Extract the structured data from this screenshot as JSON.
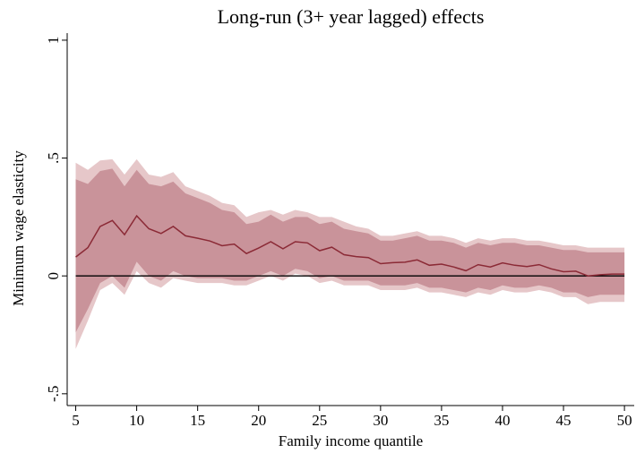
{
  "chart_data": {
    "type": "area",
    "title": "Long-run (3+ year lagged) effects",
    "xlabel": "Family income quantile",
    "ylabel": "Minimum wage elasticity",
    "xlim": [
      4.3,
      50.8
    ],
    "ylim": [
      -0.55,
      1.03
    ],
    "xticks": [
      5,
      10,
      15,
      20,
      25,
      30,
      35,
      40,
      45,
      50
    ],
    "xtick_labels": [
      "5",
      "10",
      "15",
      "20",
      "25",
      "30",
      "35",
      "40",
      "45",
      "50"
    ],
    "yticks": [
      -0.5,
      0,
      0.5,
      1
    ],
    "ytick_labels": [
      "-.5",
      "0",
      ".5",
      "1"
    ],
    "reference_line": 0,
    "grid": false,
    "colors": {
      "estimate": "#8b2a36",
      "ci_inner": "#c9939a",
      "ci_outer": "#e6c7c9",
      "zero_line": "#000000"
    },
    "x": [
      5,
      6,
      7,
      8,
      9,
      10,
      11,
      12,
      13,
      14,
      15,
      16,
      17,
      18,
      19,
      20,
      21,
      22,
      23,
      24,
      25,
      26,
      27,
      28,
      29,
      30,
      31,
      32,
      33,
      34,
      35,
      36,
      37,
      38,
      39,
      40,
      41,
      42,
      43,
      44,
      45,
      46,
      47,
      48,
      49,
      50
    ],
    "series": [
      {
        "role": "estimate",
        "values": [
          0.08,
          0.12,
          0.21,
          0.235,
          0.175,
          0.255,
          0.2,
          0.18,
          0.21,
          0.17,
          0.16,
          0.148,
          0.128,
          0.135,
          0.095,
          0.118,
          0.145,
          0.115,
          0.145,
          0.14,
          0.107,
          0.122,
          0.09,
          0.082,
          0.078,
          0.052,
          0.056,
          0.058,
          0.068,
          0.045,
          0.05,
          0.038,
          0.022,
          0.048,
          0.038,
          0.055,
          0.045,
          0.04,
          0.048,
          0.03,
          0.018,
          0.02,
          0.0,
          0.005,
          0.008,
          0.008
        ]
      },
      {
        "role": "ci_inner",
        "upper": [
          0.41,
          0.39,
          0.445,
          0.455,
          0.38,
          0.45,
          0.39,
          0.38,
          0.4,
          0.35,
          0.33,
          0.31,
          0.28,
          0.27,
          0.22,
          0.23,
          0.26,
          0.23,
          0.25,
          0.25,
          0.22,
          0.23,
          0.2,
          0.19,
          0.18,
          0.15,
          0.15,
          0.16,
          0.17,
          0.15,
          0.15,
          0.14,
          0.12,
          0.14,
          0.13,
          0.14,
          0.14,
          0.13,
          0.13,
          0.12,
          0.11,
          0.11,
          0.1,
          0.1,
          0.1,
          0.1
        ],
        "lower": [
          -0.24,
          -0.14,
          -0.03,
          0.0,
          -0.05,
          0.06,
          0.0,
          -0.02,
          0.02,
          0.0,
          -0.01,
          -0.01,
          -0.01,
          -0.02,
          -0.02,
          0.0,
          0.02,
          0.0,
          0.03,
          0.02,
          -0.01,
          0.0,
          -0.02,
          -0.02,
          -0.02,
          -0.04,
          -0.04,
          -0.04,
          -0.03,
          -0.05,
          -0.05,
          -0.06,
          -0.07,
          -0.05,
          -0.06,
          -0.04,
          -0.05,
          -0.05,
          -0.04,
          -0.05,
          -0.07,
          -0.07,
          -0.09,
          -0.08,
          -0.08,
          -0.08
        ]
      },
      {
        "role": "ci_outer",
        "upper": [
          0.48,
          0.45,
          0.49,
          0.495,
          0.43,
          0.495,
          0.43,
          0.42,
          0.44,
          0.38,
          0.36,
          0.34,
          0.31,
          0.3,
          0.25,
          0.27,
          0.28,
          0.26,
          0.28,
          0.27,
          0.25,
          0.25,
          0.23,
          0.21,
          0.2,
          0.17,
          0.17,
          0.18,
          0.19,
          0.17,
          0.17,
          0.16,
          0.14,
          0.16,
          0.15,
          0.16,
          0.16,
          0.15,
          0.15,
          0.14,
          0.13,
          0.13,
          0.12,
          0.12,
          0.12,
          0.12
        ],
        "lower": [
          -0.31,
          -0.19,
          -0.06,
          -0.03,
          -0.08,
          0.02,
          -0.03,
          -0.05,
          -0.01,
          -0.02,
          -0.03,
          -0.03,
          -0.03,
          -0.04,
          -0.04,
          -0.02,
          0.0,
          -0.02,
          0.01,
          0.0,
          -0.03,
          -0.02,
          -0.04,
          -0.04,
          -0.04,
          -0.06,
          -0.06,
          -0.06,
          -0.05,
          -0.07,
          -0.07,
          -0.08,
          -0.09,
          -0.07,
          -0.08,
          -0.06,
          -0.07,
          -0.07,
          -0.06,
          -0.07,
          -0.09,
          -0.09,
          -0.12,
          -0.11,
          -0.11,
          -0.11
        ]
      }
    ]
  }
}
